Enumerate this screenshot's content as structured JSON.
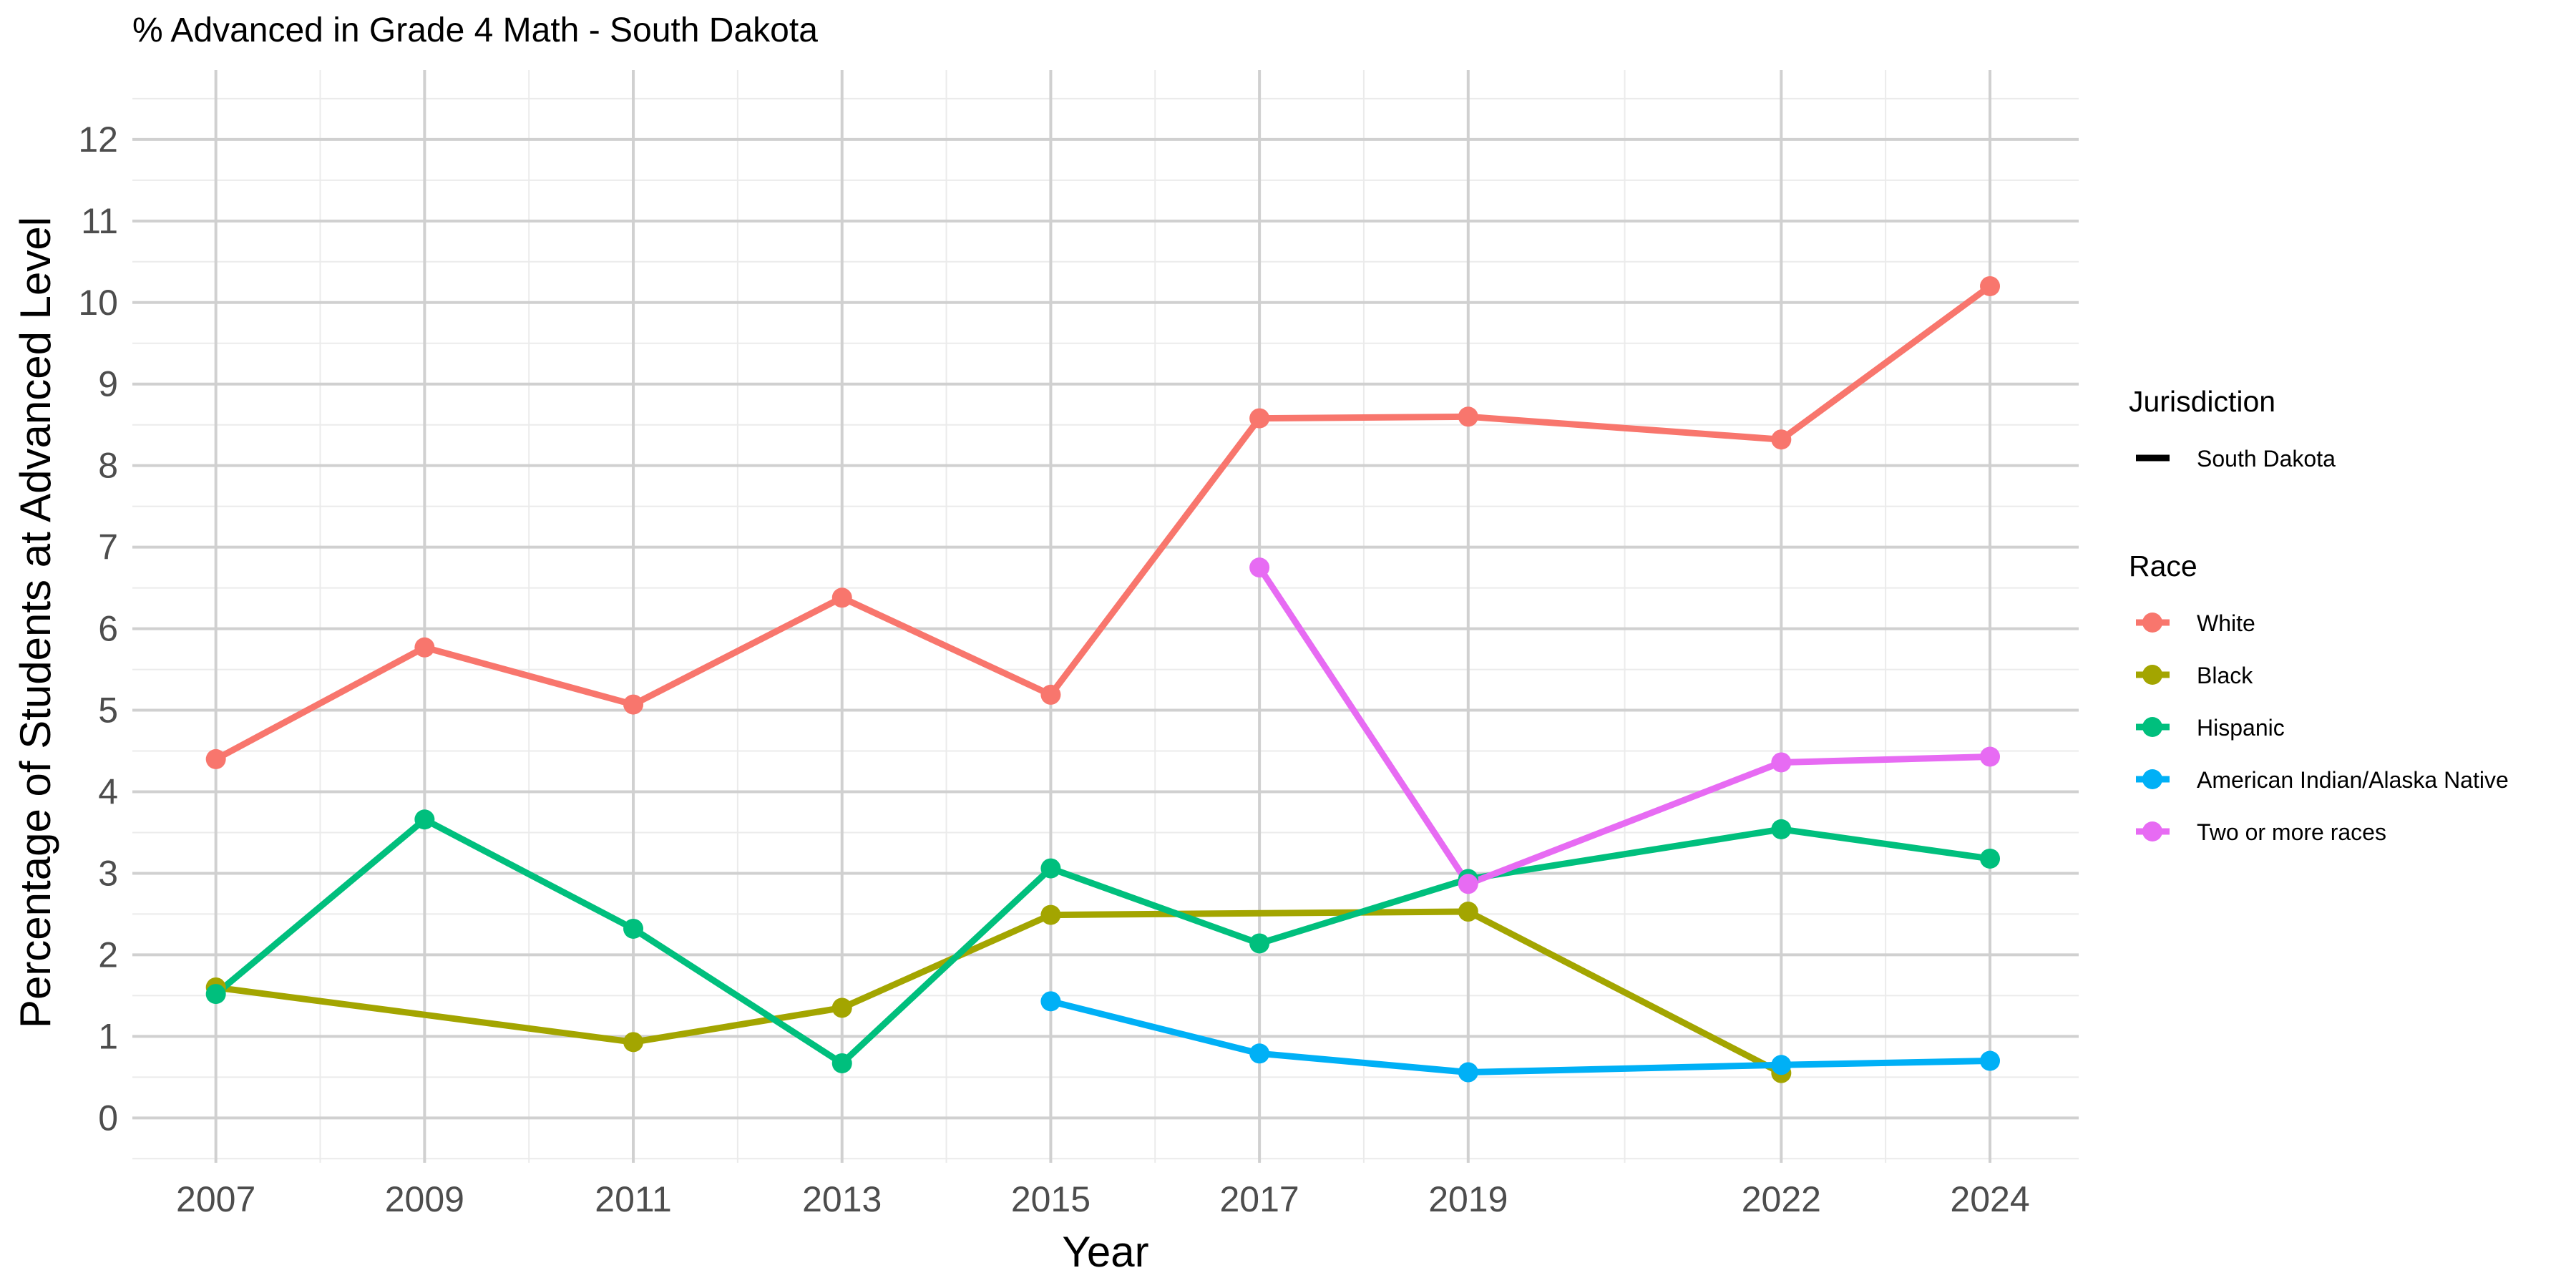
{
  "chart_data": {
    "type": "line",
    "title": "% Advanced in Grade 4 Math - South Dakota",
    "xlabel": "Year",
    "ylabel": "Percentage of Students at Advanced Level",
    "x_ticks": [
      2007,
      2009,
      2011,
      2013,
      2015,
      2017,
      2019,
      2022,
      2024
    ],
    "y_ticks": [
      0,
      1,
      2,
      3,
      4,
      5,
      6,
      7,
      8,
      9,
      10,
      11,
      12
    ],
    "xlim": [
      2006.2,
      2024.85
    ],
    "ylim": [
      -0.55,
      12.85
    ],
    "grid": true,
    "legend_position": "right",
    "legend": {
      "jurisdiction_title": "Jurisdiction",
      "jurisdiction_item": "South Dakota",
      "race_title": "Race"
    },
    "series": [
      {
        "name": "White",
        "color": "#F8766D",
        "points": [
          [
            2007,
            4.4
          ],
          [
            2009,
            5.77
          ],
          [
            2011,
            5.07
          ],
          [
            2013,
            6.38
          ],
          [
            2015,
            5.19
          ],
          [
            2017,
            8.58
          ],
          [
            2019,
            8.6
          ],
          [
            2022,
            8.32
          ],
          [
            2024,
            10.2
          ]
        ]
      },
      {
        "name": "Black",
        "color": "#A3A500",
        "points": [
          [
            2007,
            1.6
          ],
          [
            2011,
            0.93
          ],
          [
            2013,
            1.35
          ],
          [
            2015,
            2.49
          ],
          [
            2019,
            2.53
          ],
          [
            2022,
            0.55
          ]
        ]
      },
      {
        "name": "Hispanic",
        "color": "#00BF7D",
        "points": [
          [
            2007,
            1.52
          ],
          [
            2009,
            3.66
          ],
          [
            2011,
            2.32
          ],
          [
            2013,
            0.67
          ],
          [
            2015,
            3.06
          ],
          [
            2017,
            2.14
          ],
          [
            2019,
            2.93
          ],
          [
            2022,
            3.54
          ],
          [
            2024,
            3.18
          ]
        ]
      },
      {
        "name": "American Indian/Alaska Native",
        "color": "#00B0F6",
        "points": [
          [
            2015,
            1.43
          ],
          [
            2017,
            0.79
          ],
          [
            2019,
            0.56
          ],
          [
            2022,
            0.65
          ],
          [
            2024,
            0.7
          ]
        ]
      },
      {
        "name": "Two or more races",
        "color": "#E76BF3",
        "points": [
          [
            2017,
            6.75
          ],
          [
            2019,
            2.87
          ],
          [
            2022,
            4.36
          ],
          [
            2024,
            4.43
          ]
        ]
      }
    ]
  }
}
